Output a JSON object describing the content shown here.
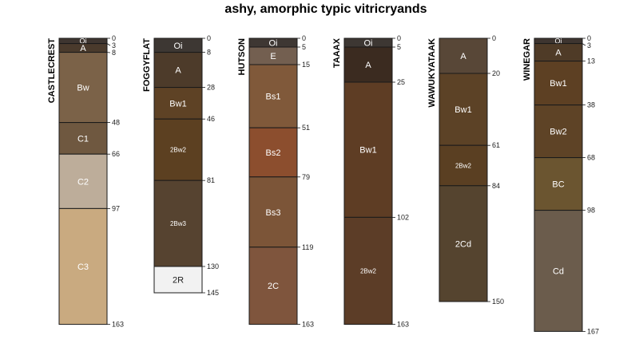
{
  "title": "ashy, amorphic typic vitricryands",
  "depth_max": 167,
  "profiles": [
    {
      "name": "CASTLECREST",
      "horizons": [
        {
          "name": "Oi",
          "top": 0,
          "bottom": 3,
          "color": "#3e3530"
        },
        {
          "name": "A",
          "top": 3,
          "bottom": 8,
          "color": "#4a3a2c"
        },
        {
          "name": "Bw",
          "top": 8,
          "bottom": 48,
          "color": "#7b6248"
        },
        {
          "name": "C1",
          "top": 48,
          "bottom": 66,
          "color": "#6f5840"
        },
        {
          "name": "C2",
          "top": 66,
          "bottom": 97,
          "color": "#bdad9a"
        },
        {
          "name": "C3",
          "top": 97,
          "bottom": 163,
          "color": "#c9aa80"
        }
      ],
      "depth_labels": [
        "0",
        "3",
        "8",
        "48",
        "66",
        "97",
        "163"
      ]
    },
    {
      "name": "FOGGYFLAT",
      "horizons": [
        {
          "name": "Oi",
          "top": 0,
          "bottom": 8,
          "color": "#3d3733"
        },
        {
          "name": "A",
          "top": 8,
          "bottom": 28,
          "color": "#4d3b2a"
        },
        {
          "name": "Bw1",
          "top": 28,
          "bottom": 46,
          "color": "#5e4225"
        },
        {
          "name": "2Bw2",
          "top": 46,
          "bottom": 81,
          "color": "#5c4021"
        },
        {
          "name": "2Bw3",
          "top": 81,
          "bottom": 130,
          "color": "#564330"
        },
        {
          "name": "2R",
          "top": 130,
          "bottom": 145,
          "color": "#f2f2f2"
        }
      ],
      "depth_labels": [
        "0",
        "8",
        "28",
        "46",
        "81",
        "130",
        "145"
      ]
    },
    {
      "name": "HUTSON",
      "horizons": [
        {
          "name": "Oi",
          "top": 0,
          "bottom": 5,
          "color": "#3e3733"
        },
        {
          "name": "E",
          "top": 5,
          "bottom": 15,
          "color": "#735f50"
        },
        {
          "name": "Bs1",
          "top": 15,
          "bottom": 51,
          "color": "#80593a"
        },
        {
          "name": "Bs2",
          "top": 51,
          "bottom": 79,
          "color": "#8c4e2e"
        },
        {
          "name": "Bs3",
          "top": 79,
          "bottom": 119,
          "color": "#7c5538"
        },
        {
          "name": "2C",
          "top": 119,
          "bottom": 163,
          "color": "#7f553d"
        }
      ],
      "depth_labels": [
        "0",
        "5",
        "15",
        "51",
        "79",
        "119",
        "163"
      ]
    },
    {
      "name": "TAAAX",
      "horizons": [
        {
          "name": "Oi",
          "top": 0,
          "bottom": 5,
          "color": "#3d3733"
        },
        {
          "name": "A",
          "top": 5,
          "bottom": 25,
          "color": "#3b2b20"
        },
        {
          "name": "Bw1",
          "top": 25,
          "bottom": 102,
          "color": "#5e3d24"
        },
        {
          "name": "2Bw2",
          "top": 102,
          "bottom": 163,
          "color": "#5c3d27"
        }
      ],
      "depth_labels": [
        "0",
        "5",
        "25",
        "102",
        "163"
      ]
    },
    {
      "name": "WAWUKYATAAK",
      "horizons": [
        {
          "name": "A",
          "top": 0,
          "bottom": 20,
          "color": "#584737"
        },
        {
          "name": "Bw1",
          "top": 20,
          "bottom": 61,
          "color": "#5c4226"
        },
        {
          "name": "2Bw2",
          "top": 61,
          "bottom": 84,
          "color": "#5a3f22"
        },
        {
          "name": "2Cd",
          "top": 84,
          "bottom": 150,
          "color": "#55442f"
        }
      ],
      "depth_labels": [
        "0",
        "20",
        "61",
        "84",
        "150"
      ]
    },
    {
      "name": "WINEGAR",
      "horizons": [
        {
          "name": "Oi",
          "top": 0,
          "bottom": 3,
          "color": "#3e3530"
        },
        {
          "name": "A",
          "top": 3,
          "bottom": 13,
          "color": "#4f3b27"
        },
        {
          "name": "Bw1",
          "top": 13,
          "bottom": 38,
          "color": "#5d4023"
        },
        {
          "name": "Bw2",
          "top": 38,
          "bottom": 68,
          "color": "#5e4326"
        },
        {
          "name": "BC",
          "top": 68,
          "bottom": 98,
          "color": "#6b5530"
        },
        {
          "name": "Cd",
          "top": 98,
          "bottom": 167,
          "color": "#6b5c4c"
        }
      ],
      "depth_labels": [
        "0",
        "3",
        "13",
        "38",
        "68",
        "98",
        "167"
      ]
    }
  ]
}
